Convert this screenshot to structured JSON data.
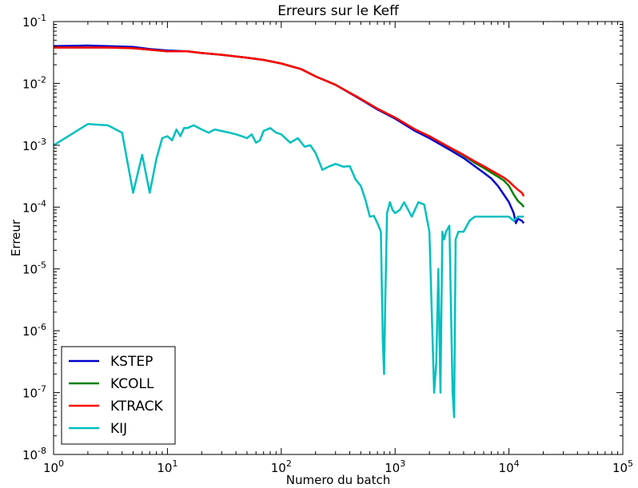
{
  "chart_data": {
    "type": "line",
    "title": "Erreurs sur le Keff",
    "xlabel": "Numero du batch",
    "ylabel": "Erreur",
    "xscale": "log",
    "yscale": "log",
    "xlim": [
      1,
      100000
    ],
    "ylim": [
      1e-08,
      0.1
    ],
    "x_ticks": [
      {
        "value": 1,
        "mantissa": "10",
        "exp": "0"
      },
      {
        "value": 10,
        "mantissa": "10",
        "exp": "1"
      },
      {
        "value": 100,
        "mantissa": "10",
        "exp": "2"
      },
      {
        "value": 1000,
        "mantissa": "10",
        "exp": "3"
      },
      {
        "value": 10000,
        "mantissa": "10",
        "exp": "4"
      },
      {
        "value": 100000,
        "mantissa": "10",
        "exp": "5"
      }
    ],
    "y_ticks": [
      {
        "value": 1e-08,
        "mantissa": "10",
        "exp": "-8"
      },
      {
        "value": 1e-07,
        "mantissa": "10",
        "exp": "-7"
      },
      {
        "value": 1e-06,
        "mantissa": "10",
        "exp": "-6"
      },
      {
        "value": 1e-05,
        "mantissa": "10",
        "exp": "-5"
      },
      {
        "value": 0.0001,
        "mantissa": "10",
        "exp": "-4"
      },
      {
        "value": 0.001,
        "mantissa": "10",
        "exp": "-3"
      },
      {
        "value": 0.01,
        "mantissa": "10",
        "exp": "-2"
      },
      {
        "value": 0.1,
        "mantissa": "10",
        "exp": "-1"
      }
    ],
    "grid": false,
    "legend_position": "bottom-left",
    "series": [
      {
        "name": "KSTEP",
        "color": "#0000cc",
        "x": [
          1,
          2,
          3,
          5,
          7,
          10,
          15,
          20,
          30,
          50,
          70,
          100,
          150,
          200,
          300,
          500,
          700,
          1000,
          1500,
          2000,
          3000,
          4000,
          5000,
          6000,
          7000,
          8000,
          9000,
          10000,
          11000,
          11500,
          12000,
          13000,
          13500
        ],
        "y": [
          0.04,
          0.041,
          0.04,
          0.039,
          0.036,
          0.034,
          0.033,
          0.031,
          0.029,
          0.026,
          0.024,
          0.021,
          0.017,
          0.013,
          0.0095,
          0.0055,
          0.0038,
          0.0027,
          0.0017,
          0.0013,
          0.00085,
          0.00062,
          0.00046,
          0.00036,
          0.00029,
          0.00022,
          0.00016,
          0.00012,
          8e-05,
          5.5e-05,
          6.5e-05,
          6e-05,
          5.5e-05
        ]
      },
      {
        "name": "KCOLL",
        "color": "#008000",
        "x": [
          1,
          2,
          3,
          5,
          7,
          10,
          15,
          20,
          30,
          50,
          70,
          100,
          150,
          200,
          300,
          500,
          700,
          1000,
          1500,
          2000,
          3000,
          4000,
          5000,
          6000,
          7000,
          8000,
          9000,
          10000,
          11000,
          12000,
          13000,
          13500
        ],
        "y": [
          0.038,
          0.038,
          0.038,
          0.037,
          0.035,
          0.033,
          0.033,
          0.031,
          0.029,
          0.026,
          0.024,
          0.021,
          0.017,
          0.013,
          0.0095,
          0.0056,
          0.0039,
          0.0028,
          0.0018,
          0.0014,
          0.00092,
          0.00068,
          0.00052,
          0.00043,
          0.00036,
          0.00031,
          0.00027,
          0.00022,
          0.00016,
          0.000125,
          0.00011,
          0.0001
        ]
      },
      {
        "name": "KTRACK",
        "color": "#ff0000",
        "x": [
          1,
          2,
          3,
          5,
          7,
          10,
          15,
          20,
          30,
          50,
          70,
          100,
          150,
          200,
          300,
          500,
          700,
          1000,
          1500,
          2000,
          3000,
          4000,
          5000,
          6000,
          7000,
          8000,
          9000,
          10000,
          11000,
          12000,
          13000,
          13500
        ],
        "y": [
          0.038,
          0.038,
          0.038,
          0.037,
          0.035,
          0.033,
          0.033,
          0.031,
          0.029,
          0.026,
          0.024,
          0.021,
          0.017,
          0.013,
          0.0095,
          0.0056,
          0.0039,
          0.0028,
          0.0018,
          0.0014,
          0.00093,
          0.0007,
          0.00055,
          0.00046,
          0.00039,
          0.00034,
          0.0003,
          0.00026,
          0.00022,
          0.00019,
          0.00017,
          0.00015
        ]
      },
      {
        "name": "KIJ",
        "color": "#00bfbf",
        "x": [
          1,
          2,
          3,
          4,
          5,
          6,
          7,
          8,
          9,
          10,
          11,
          12,
          13,
          14,
          15,
          17,
          20,
          23,
          26,
          30,
          35,
          40,
          45,
          50,
          55,
          60,
          65,
          70,
          80,
          90,
          100,
          120,
          140,
          160,
          180,
          200,
          230,
          260,
          300,
          350,
          400,
          450,
          500,
          550,
          600,
          650,
          700,
          750,
          780,
          800,
          820,
          850,
          900,
          950,
          1000,
          1100,
          1200,
          1400,
          1600,
          1800,
          2000,
          2200,
          2300,
          2400,
          2500,
          2600,
          2700,
          2800,
          3000,
          3200,
          3300,
          3400,
          3600,
          4000,
          4500,
          5000,
          6000,
          7000,
          8000,
          9000,
          10000,
          11000,
          12000,
          13000,
          13500
        ],
        "y": [
          0.001,
          0.0022,
          0.0021,
          0.0016,
          0.00017,
          0.0007,
          0.00017,
          0.0006,
          0.0013,
          0.0014,
          0.0012,
          0.0018,
          0.0014,
          0.0019,
          0.0019,
          0.0021,
          0.0018,
          0.0016,
          0.0018,
          0.0017,
          0.0016,
          0.0015,
          0.0014,
          0.0013,
          0.0015,
          0.0011,
          0.0012,
          0.0017,
          0.0019,
          0.0016,
          0.0015,
          0.0011,
          0.0013,
          0.00095,
          0.001,
          0.00075,
          0.0004,
          0.00045,
          0.0005,
          0.00045,
          0.00046,
          0.00028,
          0.00022,
          0.00013,
          7e-05,
          7.2e-05,
          5.5e-05,
          4e-05,
          7e-07,
          2e-07,
          3e-06,
          8e-05,
          0.00012,
          9e-05,
          8e-05,
          9e-05,
          0.00012,
          7e-05,
          0.00012,
          0.00011,
          4e-05,
          1e-07,
          3e-07,
          1e-05,
          1e-07,
          4e-05,
          3e-05,
          4e-05,
          5e-05,
          1e-07,
          4e-08,
          3e-05,
          4e-05,
          4e-05,
          6e-05,
          7e-05,
          7e-05,
          7e-05,
          7e-05,
          7e-05,
          7e-05,
          6e-05,
          7e-05,
          7e-05,
          7e-05
        ]
      }
    ]
  }
}
